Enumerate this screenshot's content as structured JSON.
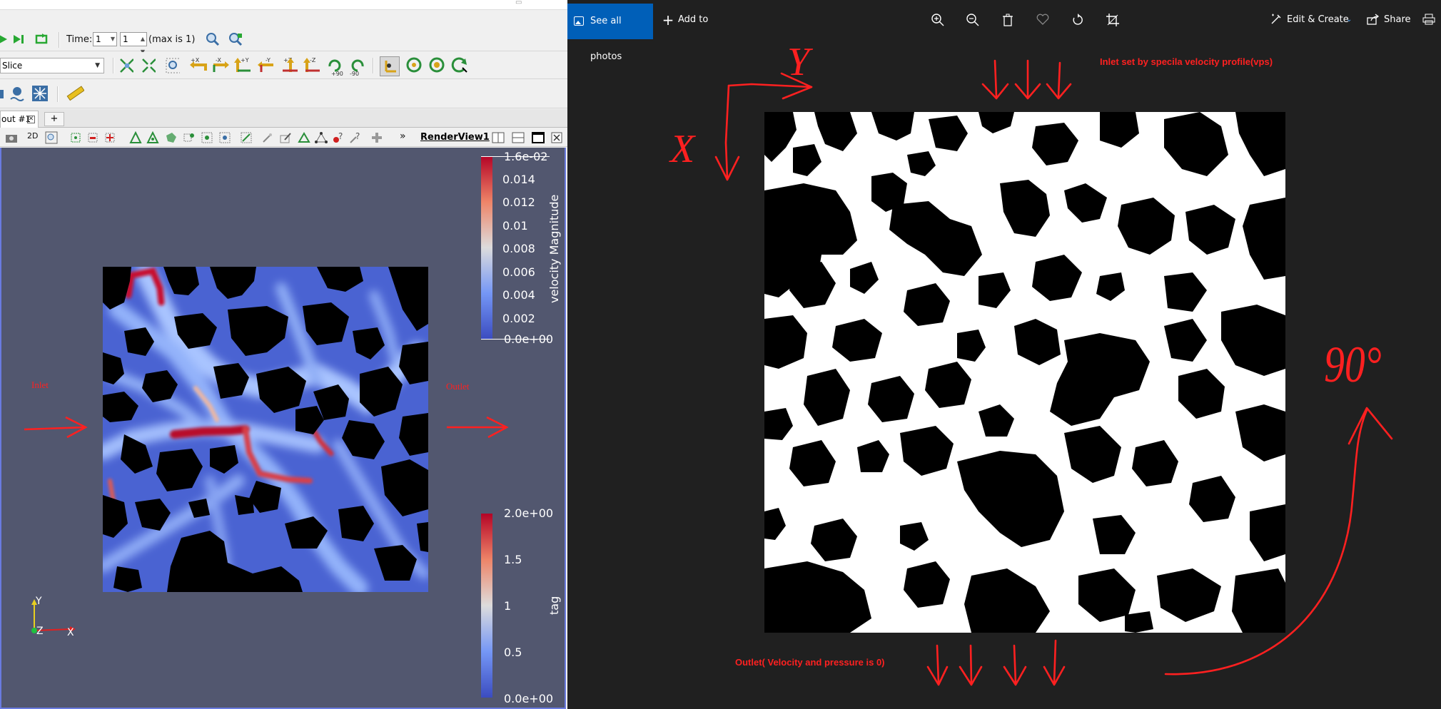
{
  "paraview": {
    "toolbar_time": {
      "time_label": "Time:",
      "time_value": "1",
      "step_value": "1",
      "max_label": "(max is 1)"
    },
    "filter_combo": {
      "value": "Slice"
    },
    "camera_buttons": [
      "+X",
      "-X",
      "+Y",
      "-Y",
      "+Z",
      "-Z",
      "+90",
      "-90"
    ],
    "layout_tab": {
      "label": "out #1",
      "close": "✕",
      "add": "+"
    },
    "view_toolbar": {
      "mode_2d": "2D",
      "more": "»",
      "render_view_label": "RenderView1"
    },
    "annotations": {
      "inlet": "Inlet",
      "outlet": "Outlet"
    },
    "velocity_colorbar": {
      "title": "velocity Magnitude",
      "ticks": [
        "1.6e-02",
        "0.014",
        "0.012",
        "0.01",
        "0.008",
        "0.006",
        "0.004",
        "0.002",
        "0.0e+00"
      ],
      "colors": [
        "#b40426",
        "#ee8468",
        "#dddcdc",
        "#7597f6",
        "#3b4cc0"
      ]
    },
    "tag_colorbar": {
      "title": "tag",
      "ticks": [
        "2.0e+00",
        "1.5",
        "1",
        "0.5",
        "0.0e+00"
      ]
    },
    "axes_triad": {
      "y": "Y",
      "z": "Z",
      "x": "X"
    },
    "colors": {
      "background": "#52576f",
      "view_border": "#6a7be0"
    }
  },
  "photos": {
    "see_all_label": "See all photos",
    "add_to_label": "Add to",
    "edit_create_label": "Edit & Create",
    "share_label": "Share",
    "annotations": {
      "top": "Inlet set by specila velocity profile(vps)",
      "bottom": "Outlet( Velocity and pressure is 0)",
      "rotation": "90°",
      "axis_y": "Y",
      "axis_x": "X"
    },
    "colors": {
      "accent": "#005fb8",
      "ink": "#ff2020"
    }
  }
}
